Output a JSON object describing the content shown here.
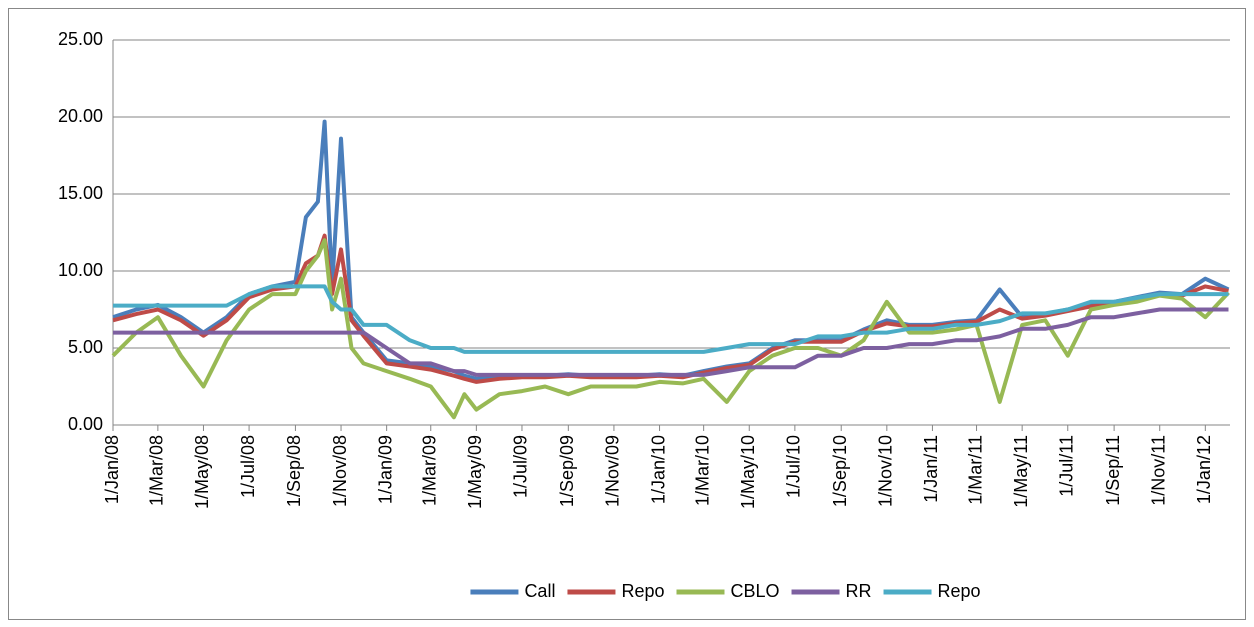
{
  "chart_data": {
    "type": "line",
    "x": [
      "1/Jan/08",
      "1/Feb/08",
      "1/Mar/08",
      "1/Apr/08",
      "1/May/08",
      "1/Jun/08",
      "1/Jul/08",
      "1/Aug/08",
      "1/Sep/08",
      "15/Sep/08",
      "1/Oct/08",
      "10/Oct/08",
      "20/Oct/08",
      "1/Nov/08",
      "15/Nov/08",
      "1/Dec/08",
      "1/Jan/09",
      "1/Feb/09",
      "1/Mar/09",
      "1/Apr/09",
      "15/Apr/09",
      "1/May/09",
      "1/Jun/09",
      "1/Jul/09",
      "1/Aug/09",
      "1/Sep/09",
      "1/Oct/09",
      "1/Nov/09",
      "1/Dec/09",
      "1/Jan/10",
      "1/Feb/10",
      "1/Mar/10",
      "1/Apr/10",
      "1/May/10",
      "1/Jun/10",
      "1/Jul/10",
      "1/Aug/10",
      "1/Sep/10",
      "1/Oct/10",
      "1/Nov/10",
      "1/Dec/10",
      "1/Jan/11",
      "1/Feb/11",
      "1/Mar/11",
      "1/Apr/11",
      "1/May/11",
      "1/Jun/11",
      "1/Jul/11",
      "1/Aug/11",
      "1/Sep/11",
      "1/Oct/11",
      "1/Nov/11",
      "1/Dec/11",
      "1/Jan/12",
      "1/Feb/12"
    ],
    "series": [
      {
        "name": "Call",
        "color": "#4a7ebb",
        "values": [
          7.0,
          7.5,
          7.8,
          7.0,
          6.0,
          7.0,
          8.5,
          9.0,
          9.3,
          13.5,
          14.5,
          19.7,
          9.0,
          18.6,
          7.0,
          6.0,
          4.2,
          4.0,
          3.8,
          3.5,
          3.2,
          3.0,
          3.2,
          3.2,
          3.2,
          3.3,
          3.2,
          3.2,
          3.2,
          3.3,
          3.2,
          3.5,
          3.8,
          4.0,
          5.0,
          5.5,
          5.5,
          5.5,
          6.2,
          6.8,
          6.5,
          6.5,
          6.7,
          6.8,
          8.8,
          7.0,
          7.2,
          7.5,
          7.8,
          8.0,
          8.3,
          8.6,
          8.5,
          9.5,
          8.8
        ]
      },
      {
        "name": "Repo",
        "color": "#be4b48",
        "values": [
          6.8,
          7.2,
          7.5,
          6.8,
          5.8,
          6.8,
          8.3,
          8.8,
          9.0,
          10.5,
          11.0,
          12.3,
          8.5,
          11.4,
          6.8,
          5.8,
          4.0,
          3.8,
          3.6,
          3.2,
          3.0,
          2.8,
          3.0,
          3.1,
          3.1,
          3.2,
          3.1,
          3.1,
          3.1,
          3.2,
          3.1,
          3.4,
          3.7,
          3.9,
          4.9,
          5.4,
          5.4,
          5.4,
          6.1,
          6.6,
          6.4,
          6.4,
          6.6,
          6.7,
          7.5,
          6.9,
          7.1,
          7.4,
          7.7,
          7.9,
          8.2,
          8.5,
          8.4,
          9.0,
          8.7
        ]
      },
      {
        "name": "CBLO",
        "color": "#98b954",
        "values": [
          4.5,
          6.0,
          7.0,
          4.5,
          2.5,
          5.5,
          7.5,
          8.5,
          8.5,
          10.0,
          11.0,
          12.0,
          7.5,
          9.5,
          5.0,
          4.0,
          3.5,
          3.0,
          2.5,
          0.5,
          2.0,
          1.0,
          2.0,
          2.2,
          2.5,
          2.0,
          2.5,
          2.5,
          2.5,
          2.8,
          2.7,
          3.0,
          1.5,
          3.5,
          4.5,
          5.0,
          5.0,
          4.5,
          5.5,
          8.0,
          6.0,
          6.0,
          6.2,
          6.5,
          1.5,
          6.5,
          6.8,
          4.5,
          7.5,
          7.8,
          8.0,
          8.4,
          8.2,
          7.0,
          8.6
        ]
      },
      {
        "name": "RR",
        "color": "#7d60a0",
        "values": [
          6,
          6,
          6,
          6,
          6,
          6,
          6,
          6,
          6,
          6,
          6,
          6,
          6,
          6,
          6,
          6,
          5.0,
          4.0,
          4.0,
          3.5,
          3.5,
          3.25,
          3.25,
          3.25,
          3.25,
          3.25,
          3.25,
          3.25,
          3.25,
          3.25,
          3.25,
          3.25,
          3.5,
          3.75,
          3.75,
          3.75,
          4.5,
          4.5,
          5.0,
          5.0,
          5.25,
          5.25,
          5.5,
          5.5,
          5.75,
          6.25,
          6.25,
          6.5,
          7.0,
          7.0,
          7.25,
          7.5,
          7.5,
          7.5,
          7.5
        ]
      },
      {
        "name": "Repo",
        "color": "#4bacc6",
        "values": [
          7.75,
          7.75,
          7.75,
          7.75,
          7.75,
          7.75,
          8.5,
          9.0,
          9.0,
          9.0,
          9.0,
          9.0,
          8.0,
          7.5,
          7.5,
          6.5,
          6.5,
          5.5,
          5.0,
          5.0,
          4.75,
          4.75,
          4.75,
          4.75,
          4.75,
          4.75,
          4.75,
          4.75,
          4.75,
          4.75,
          4.75,
          4.75,
          5.0,
          5.25,
          5.25,
          5.25,
          5.75,
          5.75,
          6.0,
          6.0,
          6.25,
          6.25,
          6.5,
          6.5,
          6.75,
          7.25,
          7.25,
          7.5,
          8.0,
          8.0,
          8.25,
          8.5,
          8.5,
          8.5,
          8.5
        ]
      }
    ],
    "xlim": [
      "1/Jan/08",
      "3/Feb/12"
    ],
    "xticks": [
      "1/Jan/08",
      "1/Mar/08",
      "1/May/08",
      "1/Jul/08",
      "1/Sep/08",
      "1/Nov/08",
      "1/Jan/09",
      "1/Mar/09",
      "1/May/09",
      "1/Jul/09",
      "1/Sep/09",
      "1/Nov/09",
      "1/Jan/10",
      "1/Mar/10",
      "1/May/10",
      "1/Jul/10",
      "1/Sep/10",
      "1/Nov/10",
      "1/Jan/11",
      "1/Mar/11",
      "1/May/11",
      "1/Jul/11",
      "1/Sep/11",
      "1/Nov/11",
      "1/Jan/12"
    ],
    "ylim": [
      0,
      25
    ],
    "yticks": [
      {
        "value": 0,
        "label": "0.00"
      },
      {
        "value": 5,
        "label": "5.00"
      },
      {
        "value": 10,
        "label": "10.00"
      },
      {
        "value": 15,
        "label": "15.00"
      },
      {
        "value": 20,
        "label": "20.00"
      },
      {
        "value": 25,
        "label": "25.00"
      }
    ],
    "grid": true,
    "legend": "bottom"
  }
}
